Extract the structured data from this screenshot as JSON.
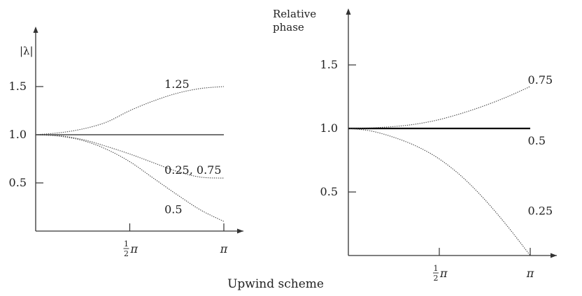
{
  "caption": "Upwind scheme",
  "chart_data": [
    {
      "type": "line",
      "ylabel": "|λ|",
      "xlabel": "",
      "xlim": [
        0,
        3.1416
      ],
      "ylim": [
        0,
        2
      ],
      "x_ticks": [
        {
          "value": 1.5708,
          "label": "1/2 π"
        },
        {
          "value": 3.1416,
          "label": "π"
        }
      ],
      "y_ticks": [
        {
          "value": 0.5,
          "label": "0.5"
        },
        {
          "value": 1.0,
          "label": "1.0"
        },
        {
          "value": 1.5,
          "label": "1.5"
        }
      ],
      "series": [
        {
          "name": "",
          "style": "solid",
          "x": [
            0,
            3.1416
          ],
          "y": [
            1.0,
            1.0
          ]
        },
        {
          "name": "1.25",
          "style": "dotted",
          "x": [
            0,
            0.3927,
            0.7854,
            1.1781,
            1.5708,
            1.9635,
            2.3562,
            2.7489,
            3.1416
          ],
          "y": [
            1.0,
            1.02,
            1.06,
            1.13,
            1.25,
            1.35,
            1.43,
            1.48,
            1.5
          ]
        },
        {
          "name": "0.25, 0.75",
          "style": "dotted",
          "x": [
            0,
            0.3927,
            0.7854,
            1.1781,
            1.5708,
            1.9635,
            2.3562,
            2.7489,
            3.1416
          ],
          "y": [
            1.0,
            0.99,
            0.95,
            0.88,
            0.8,
            0.71,
            0.62,
            0.56,
            0.55
          ]
        },
        {
          "name": "0.5",
          "style": "dotted",
          "x": [
            0,
            0.3927,
            0.7854,
            1.1781,
            1.5708,
            1.9635,
            2.3562,
            2.7489,
            3.1416
          ],
          "y": [
            1.0,
            0.985,
            0.94,
            0.85,
            0.72,
            0.55,
            0.38,
            0.22,
            0.1
          ]
        }
      ],
      "labels": [
        {
          "text": "1.25",
          "x": 2.15,
          "y": 1.52
        },
        {
          "text": "0.25, 0.75",
          "x": 2.15,
          "y": 0.63
        },
        {
          "text": "0.5",
          "x": 2.15,
          "y": 0.22
        }
      ]
    },
    {
      "type": "line",
      "ylabel": "Relative phase",
      "xlabel": "",
      "xlim": [
        0,
        3.1416
      ],
      "ylim": [
        0,
        1.8
      ],
      "x_ticks": [
        {
          "value": 1.5708,
          "label": "1/2 π"
        },
        {
          "value": 3.1416,
          "label": "π"
        }
      ],
      "y_ticks": [
        {
          "value": 0.5,
          "label": "0.5"
        },
        {
          "value": 1.0,
          "label": "1.0"
        },
        {
          "value": 1.5,
          "label": "1.5"
        }
      ],
      "series": [
        {
          "name": "0.5",
          "style": "solid-bold",
          "x": [
            0,
            3.1416
          ],
          "y": [
            1.0,
            1.0
          ]
        },
        {
          "name": "0.75",
          "style": "dotted",
          "x": [
            0,
            0.3927,
            0.7854,
            1.1781,
            1.5708,
            1.9635,
            2.3562,
            2.7489,
            3.1416
          ],
          "y": [
            1.0,
            1.005,
            1.015,
            1.035,
            1.07,
            1.12,
            1.18,
            1.25,
            1.33
          ]
        },
        {
          "name": "0.25",
          "style": "dotted",
          "x": [
            0,
            0.3927,
            0.7854,
            1.1781,
            1.5708,
            1.9635,
            2.3562,
            2.7489,
            3.1416
          ],
          "y": [
            1.0,
            0.98,
            0.93,
            0.86,
            0.76,
            0.62,
            0.44,
            0.23,
            0.0
          ]
        }
      ],
      "labels": [
        {
          "text": "0.75",
          "x": 3.1,
          "y": 1.38
        },
        {
          "text": "0.5",
          "x": 3.1,
          "y": 0.9
        },
        {
          "text": "0.25",
          "x": 3.1,
          "y": 0.35
        }
      ]
    }
  ]
}
